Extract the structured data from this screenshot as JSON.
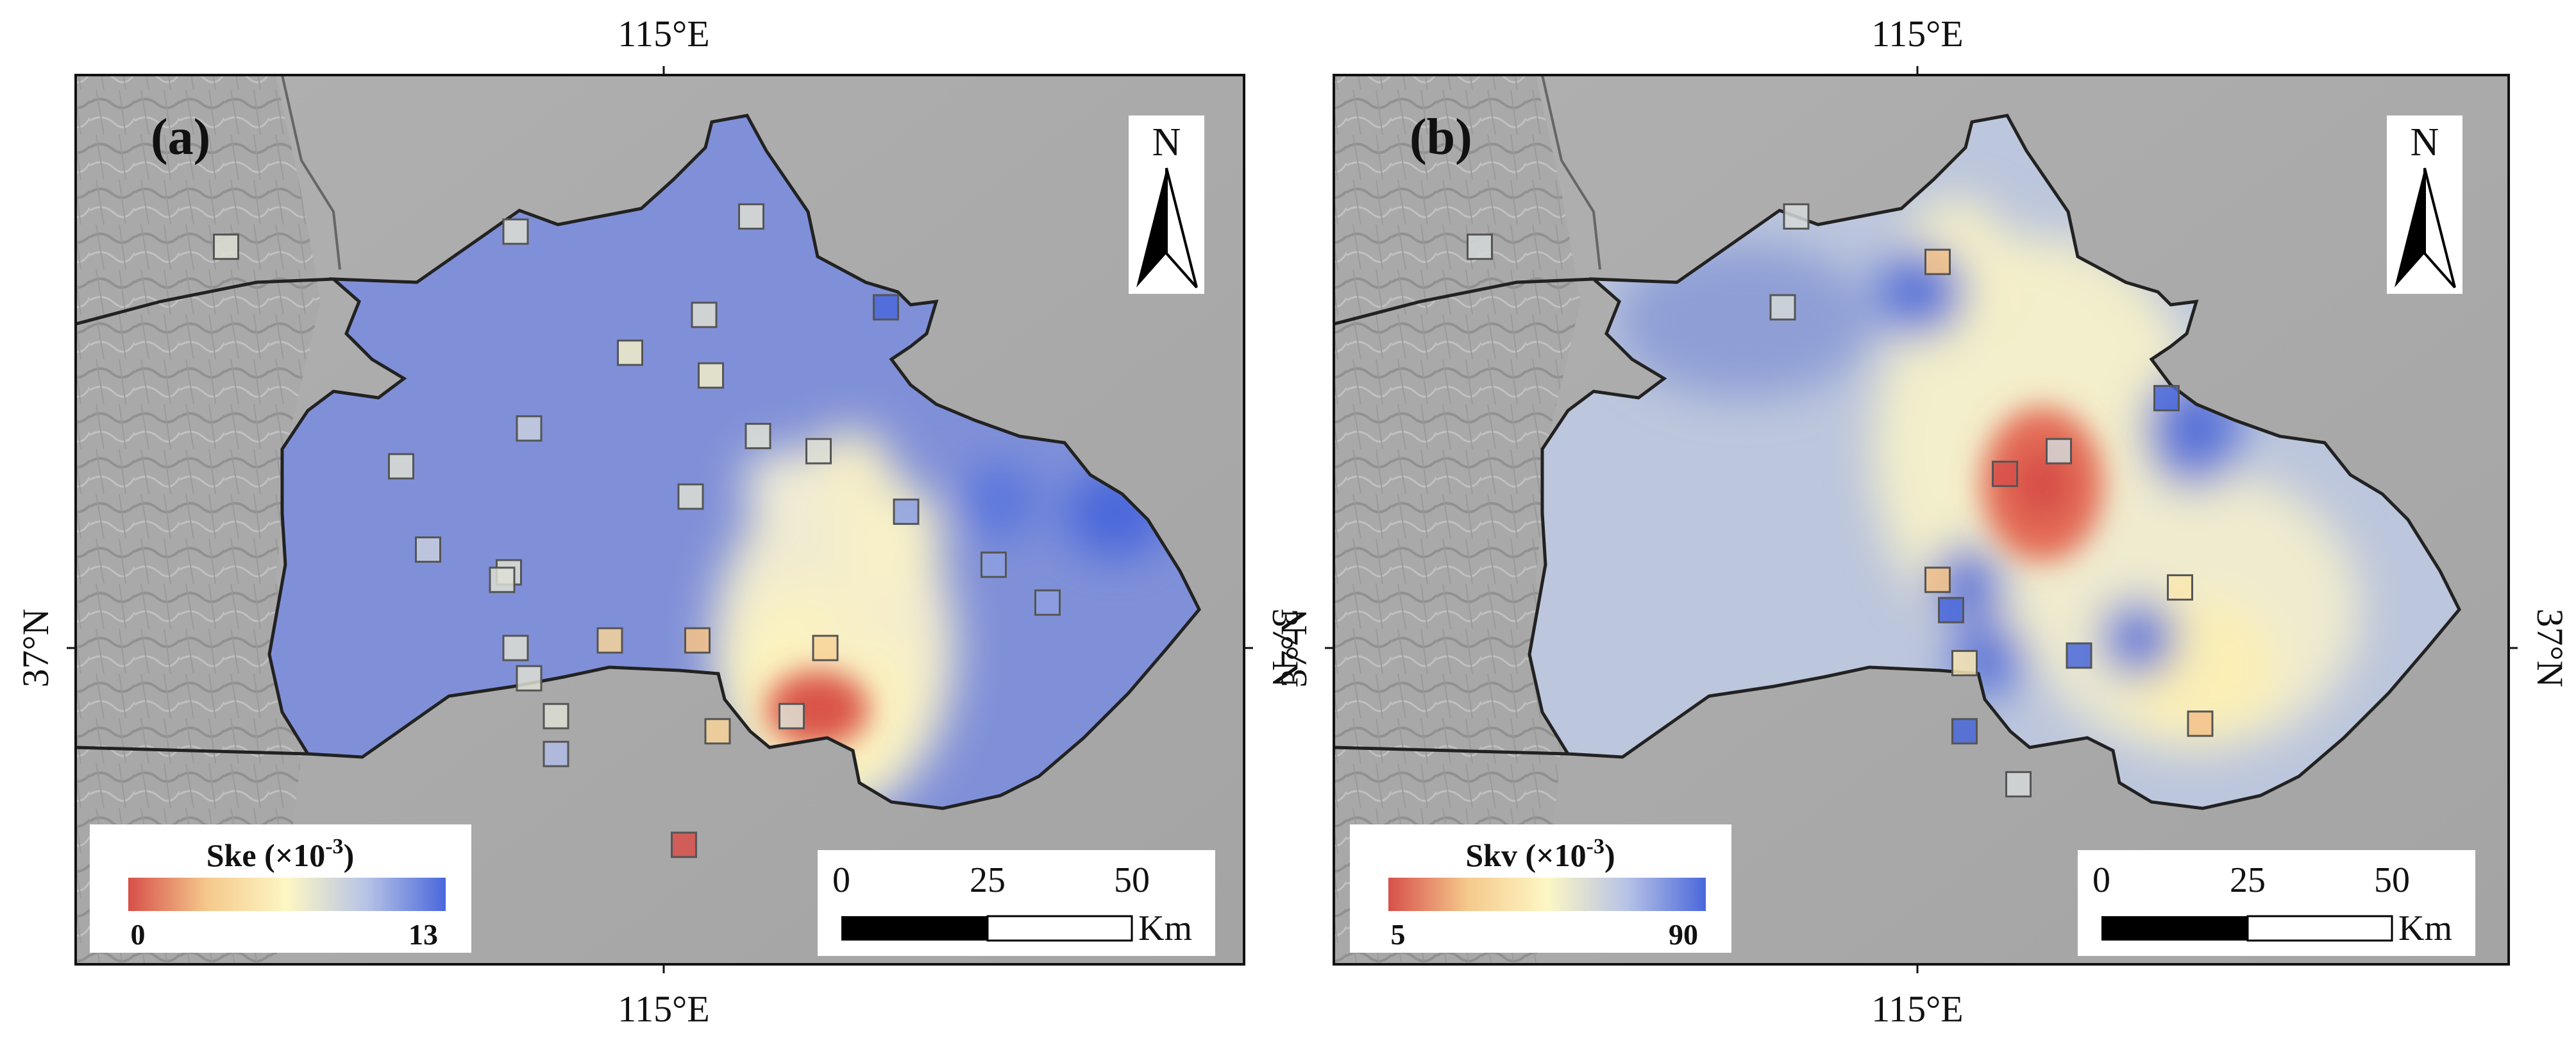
{
  "panels": [
    {
      "label": "(a)",
      "legend": {
        "title_main": "Ske (×10",
        "title_exp": "-3",
        "title_close": ")",
        "min": "0",
        "max": "13",
        "colors": [
          "#d7504a",
          "#f5c98c",
          "#fdf7c4",
          "#b7c3e6",
          "#4a68db"
        ]
      },
      "scale": {
        "ticks": [
          "0",
          "25",
          "50"
        ],
        "unit": "Km"
      },
      "north": "N",
      "lon_top": "115°E",
      "lon_bottom": "115°E",
      "lat_left": "37°N",
      "lat_right": "37°N",
      "stations": [
        {
          "lon": 114.35,
          "lat": 37.53,
          "v": 8
        },
        {
          "lon": 114.78,
          "lat": 37.55,
          "v": 8
        },
        {
          "lon": 114.95,
          "lat": 37.39,
          "v": 7
        },
        {
          "lon": 115.13,
          "lat": 37.57,
          "v": 8
        },
        {
          "lon": 115.06,
          "lat": 37.44,
          "v": 8
        },
        {
          "lon": 115.07,
          "lat": 37.36,
          "v": 7
        },
        {
          "lon": 114.8,
          "lat": 37.29,
          "v": 9
        },
        {
          "lon": 114.61,
          "lat": 37.24,
          "v": 8
        },
        {
          "lon": 114.65,
          "lat": 37.13,
          "v": 9
        },
        {
          "lon": 114.77,
          "lat": 37.1,
          "v": 8
        },
        {
          "lon": 115.04,
          "lat": 37.2,
          "v": 8
        },
        {
          "lon": 115.14,
          "lat": 37.28,
          "v": 8
        },
        {
          "lon": 115.23,
          "lat": 37.26,
          "v": 8
        },
        {
          "lon": 115.33,
          "lat": 37.45,
          "v": 13
        },
        {
          "lon": 114.76,
          "lat": 37.09,
          "v": 8
        },
        {
          "lon": 114.78,
          "lat": 37.0,
          "v": 8
        },
        {
          "lon": 114.8,
          "lat": 36.96,
          "v": 8
        },
        {
          "lon": 114.84,
          "lat": 36.91,
          "v": 8
        },
        {
          "lon": 114.84,
          "lat": 36.86,
          "v": 10
        },
        {
          "lon": 114.92,
          "lat": 37.01,
          "v": 4
        },
        {
          "lon": 115.05,
          "lat": 37.01,
          "v": 3
        },
        {
          "lon": 115.24,
          "lat": 37.0,
          "v": 4
        },
        {
          "lon": 115.08,
          "lat": 36.89,
          "v": 4
        },
        {
          "lon": 115.19,
          "lat": 36.91,
          "v": 8
        },
        {
          "lon": 115.36,
          "lat": 37.18,
          "v": 11
        },
        {
          "lon": 115.57,
          "lat": 37.06,
          "v": 11
        },
        {
          "lon": 115.49,
          "lat": 37.11,
          "v": 11
        },
        {
          "lon": 115.03,
          "lat": 36.74,
          "v": 0
        }
      ]
    },
    {
      "label": "(b)",
      "legend": {
        "title_main": "Skv (×10",
        "title_exp": "-3",
        "title_close": ")",
        "min": "5",
        "max": "90",
        "colors": [
          "#d7504a",
          "#f5c98c",
          "#fdf7c4",
          "#b7c3e6",
          "#4a68db"
        ]
      },
      "scale": {
        "ticks": [
          "0",
          "25",
          "50"
        ],
        "unit": "Km"
      },
      "north": "N",
      "lon_top": "115°E",
      "lon_bottom": "115°E",
      "lat_left": "37°N",
      "lat_right": "37°N",
      "stations": [
        {
          "lon": 114.35,
          "lat": 37.53,
          "v": 60
        },
        {
          "lon": 114.82,
          "lat": 37.57,
          "v": 60
        },
        {
          "lon": 114.8,
          "lat": 37.45,
          "v": 60
        },
        {
          "lon": 115.03,
          "lat": 37.51,
          "v": 25
        },
        {
          "lon": 115.21,
          "lat": 37.26,
          "v": 60
        },
        {
          "lon": 115.37,
          "lat": 37.33,
          "v": 90
        },
        {
          "lon": 115.13,
          "lat": 37.23,
          "v": 5
        },
        {
          "lon": 115.03,
          "lat": 37.09,
          "v": 25
        },
        {
          "lon": 115.05,
          "lat": 37.05,
          "v": 90
        },
        {
          "lon": 115.07,
          "lat": 36.98,
          "v": 40
        },
        {
          "lon": 115.39,
          "lat": 37.08,
          "v": 40
        },
        {
          "lon": 115.24,
          "lat": 36.99,
          "v": 90
        },
        {
          "lon": 115.07,
          "lat": 36.89,
          "v": 90
        },
        {
          "lon": 115.42,
          "lat": 36.9,
          "v": 25
        },
        {
          "lon": 115.15,
          "lat": 36.82,
          "v": 60
        }
      ]
    }
  ]
}
